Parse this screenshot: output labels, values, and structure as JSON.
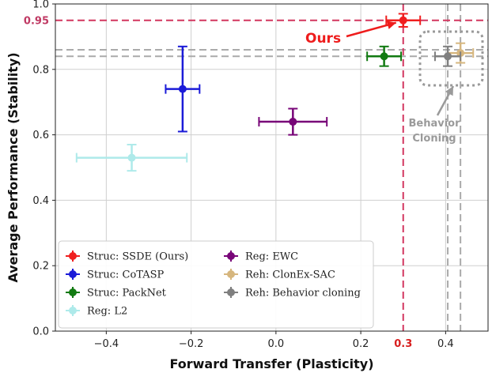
{
  "chart_data": {
    "type": "scatter",
    "xlabel": "Forward Transfer (Plasticity)",
    "ylabel": "Average Performance (Stability)",
    "xlim": [
      -0.52,
      0.5
    ],
    "ylim": [
      0.0,
      1.0
    ],
    "grid": true,
    "legend_position": "lower-left",
    "x_ticks": [
      {
        "value": -0.4,
        "label": "−0.4"
      },
      {
        "value": -0.2,
        "label": "−0.2"
      },
      {
        "value": 0.0,
        "label": "0.0"
      },
      {
        "value": 0.2,
        "label": "0.2"
      },
      {
        "value": 0.4,
        "label": "0.4"
      }
    ],
    "y_ticks": [
      {
        "value": 0.0,
        "label": "0.0"
      },
      {
        "value": 0.2,
        "label": "0.2"
      },
      {
        "value": 0.4,
        "label": "0.4"
      },
      {
        "value": 0.6,
        "label": "0.6"
      },
      {
        "value": 0.8,
        "label": "0.8"
      },
      {
        "value": 1.0,
        "label": "1.0"
      }
    ],
    "highlight_x": {
      "value": 0.3,
      "label": "0.3",
      "color": "#d81e1e"
    },
    "highlight_y": {
      "value": 0.95,
      "label": "0.95",
      "color": "#c03a64"
    },
    "series": [
      {
        "name": "Struc: SSDE (Ours)",
        "color": "#f01f1f",
        "x": 0.3,
        "y": 0.95,
        "xerr": 0.04,
        "yerr": 0.02
      },
      {
        "name": "Struc: CoTASP",
        "color": "#1b1bd8",
        "x": -0.22,
        "y": 0.74,
        "xerr": 0.04,
        "yerr": 0.13
      },
      {
        "name": "Struc: PackNet",
        "color": "#117a11",
        "x": 0.255,
        "y": 0.84,
        "xerr": 0.04,
        "yerr": 0.03
      },
      {
        "name": "Reg: L2",
        "color": "#aeeaea",
        "x": -0.34,
        "y": 0.53,
        "xerr": 0.13,
        "yerr": 0.04
      },
      {
        "name": "Reg: EWC",
        "color": "#780578",
        "x": 0.04,
        "y": 0.64,
        "xerr": 0.08,
        "yerr": 0.04
      },
      {
        "name": "Reh: ClonEx-SAC",
        "color": "#d6b67e",
        "x": 0.435,
        "y": 0.85,
        "xerr": 0.03,
        "yerr": 0.03
      },
      {
        "name": "Reh: Behavior cloning",
        "color": "#7f7f7f",
        "x": 0.405,
        "y": 0.84,
        "xerr": 0.03,
        "yerr": 0.03
      }
    ],
    "reference_lines": {
      "vertical_red": 0.3,
      "horizontal_red": 0.95,
      "vertical_gray": [
        0.405,
        0.435
      ],
      "horizontal_gray": [
        0.84,
        0.86
      ],
      "colors": {
        "red": "#d2365f",
        "gray": "#aaaaaa"
      }
    },
    "annotations": [
      {
        "id": "ours",
        "text": "Ours",
        "color": "#ee1c1c"
      },
      {
        "id": "bc",
        "text_lines": [
          "Behavior",
          "Cloning"
        ],
        "color": "#9a9a9a"
      }
    ]
  }
}
